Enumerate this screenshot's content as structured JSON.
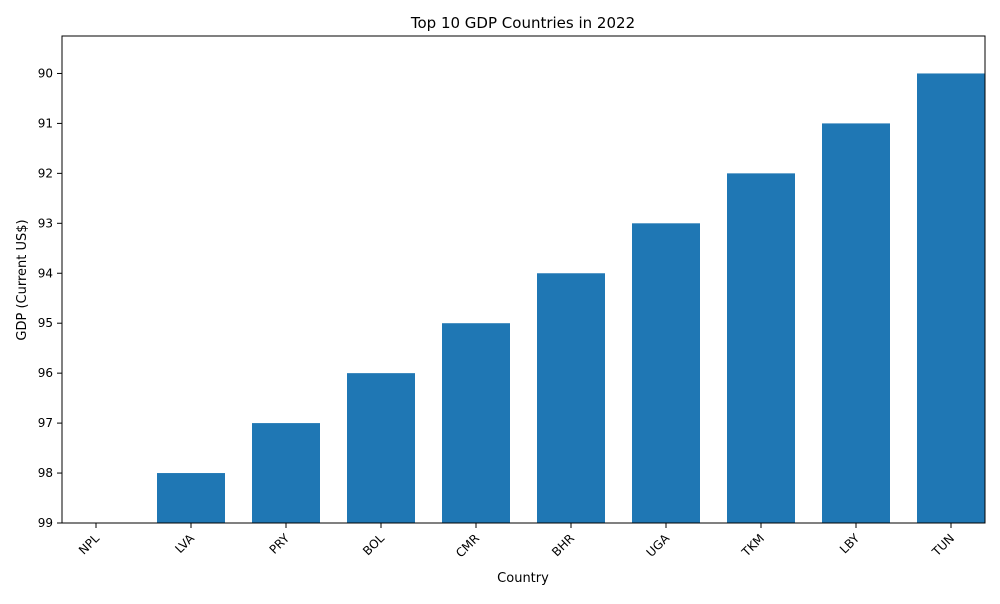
{
  "chart_data": {
    "type": "bar",
    "title": "Top 10 GDP Countries in 2022",
    "xlabel": "Country",
    "ylabel": "GDP (Current US$)",
    "categories": [
      "NPL",
      "LVA",
      "PRY",
      "BOL",
      "CMR",
      "BHR",
      "UGA",
      "TKM",
      "LBY",
      "TUN"
    ],
    "values": [
      99,
      98,
      97,
      96,
      95,
      94,
      93,
      92,
      91,
      90
    ],
    "y_ticks": [
      "90",
      "91",
      "92",
      "93",
      "94",
      "95",
      "96",
      "97",
      "98",
      "99"
    ],
    "y_axis_inverted": true,
    "ylim": [
      89.25,
      99
    ],
    "grid": false,
    "bar_color": "#1f77b4"
  }
}
